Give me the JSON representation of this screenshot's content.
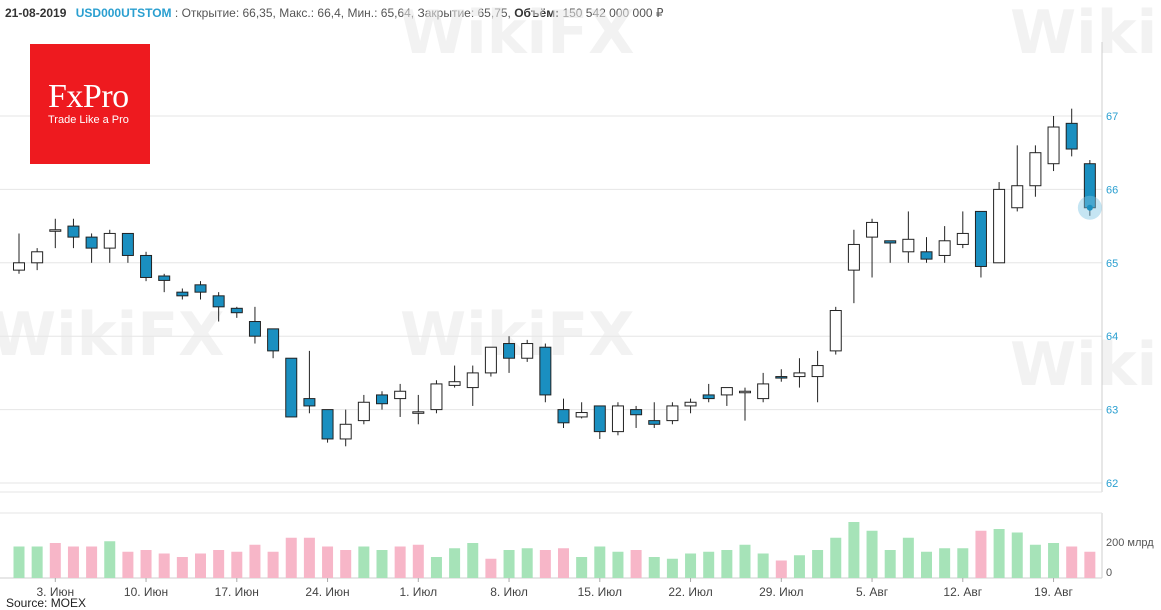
{
  "header": {
    "date": "21-08-2019",
    "ticker": "USD000UTSTOM",
    "sep": ":",
    "open": "Открытие: 66,35,",
    "high": "Макс.: 66,4,",
    "low": "Мин.: 65,64,",
    "close": "Закрытие: 65,75,",
    "volume_label": "Объём:",
    "volume_value": "150 542 000 000 ₽"
  },
  "logo": {
    "brand": "FxPro",
    "tagline": "Trade Like a Pro"
  },
  "watermark": "WikiFX",
  "source": "Source: MOEX",
  "colors": {
    "up_fill": "#ffffff",
    "down_fill": "#1a8fc0",
    "volume_up": "#a6e3b8",
    "volume_down": "#f7b6c8",
    "axis_text": "#2a9fd0",
    "brand_red": "#ee1a1f"
  },
  "chart_data": {
    "type": "candlestick",
    "y_axis": {
      "ticks": [
        62,
        63,
        64,
        65,
        66,
        67
      ],
      "range": [
        61.7,
        68.0
      ],
      "side": "right"
    },
    "volume_axis": {
      "ticks": [
        "0",
        "200 млрд"
      ]
    },
    "x_labels": [
      "3. Июн",
      "10. Июн",
      "17. Июн",
      "24. Июн",
      "1. Июл",
      "8. Июл",
      "15. Июл",
      "22. Июл",
      "29. Июл",
      "5. Авг",
      "12. Авг",
      "19. Авг"
    ],
    "x_label_index": [
      2,
      7,
      12,
      17,
      22,
      27,
      32,
      37,
      42,
      47,
      52,
      57
    ],
    "candles": [
      {
        "o": 64.9,
        "h": 65.4,
        "l": 64.85,
        "c": 65.0
      },
      {
        "o": 65.0,
        "h": 65.2,
        "l": 64.9,
        "c": 65.15
      },
      {
        "o": 65.45,
        "h": 65.6,
        "l": 65.2,
        "c": 65.45
      },
      {
        "o": 65.5,
        "h": 65.6,
        "l": 65.2,
        "c": 65.35
      },
      {
        "o": 65.35,
        "h": 65.4,
        "l": 65.0,
        "c": 65.2
      },
      {
        "o": 65.2,
        "h": 65.45,
        "l": 65.0,
        "c": 65.4
      },
      {
        "o": 65.4,
        "h": 65.4,
        "l": 65.0,
        "c": 65.1
      },
      {
        "o": 65.1,
        "h": 65.15,
        "l": 64.75,
        "c": 64.8
      },
      {
        "o": 64.82,
        "h": 64.85,
        "l": 64.6,
        "c": 64.76
      },
      {
        "o": 64.6,
        "h": 64.65,
        "l": 64.5,
        "c": 64.55
      },
      {
        "o": 64.7,
        "h": 64.75,
        "l": 64.5,
        "c": 64.6
      },
      {
        "o": 64.55,
        "h": 64.6,
        "l": 64.2,
        "c": 64.4
      },
      {
        "o": 64.38,
        "h": 64.4,
        "l": 64.25,
        "c": 64.32
      },
      {
        "o": 64.2,
        "h": 64.4,
        "l": 63.9,
        "c": 64.0
      },
      {
        "o": 64.1,
        "h": 64.1,
        "l": 63.7,
        "c": 63.8
      },
      {
        "o": 63.7,
        "h": 63.7,
        "l": 62.9,
        "c": 62.9
      },
      {
        "o": 63.15,
        "h": 63.8,
        "l": 62.95,
        "c": 63.05
      },
      {
        "o": 63.0,
        "h": 63.0,
        "l": 62.55,
        "c": 62.6
      },
      {
        "o": 62.6,
        "h": 63.0,
        "l": 62.5,
        "c": 62.8
      },
      {
        "o": 62.85,
        "h": 63.2,
        "l": 62.8,
        "c": 63.1
      },
      {
        "o": 63.2,
        "h": 63.25,
        "l": 63.0,
        "c": 63.08
      },
      {
        "o": 63.15,
        "h": 63.35,
        "l": 62.9,
        "c": 63.25
      },
      {
        "o": 62.95,
        "h": 63.2,
        "l": 62.8,
        "c": 62.97
      },
      {
        "o": 63.0,
        "h": 63.4,
        "l": 62.95,
        "c": 63.35
      },
      {
        "o": 63.33,
        "h": 63.6,
        "l": 63.3,
        "c": 63.38
      },
      {
        "o": 63.3,
        "h": 63.6,
        "l": 63.05,
        "c": 63.5
      },
      {
        "o": 63.5,
        "h": 63.85,
        "l": 63.45,
        "c": 63.85
      },
      {
        "o": 63.9,
        "h": 64.0,
        "l": 63.5,
        "c": 63.7
      },
      {
        "o": 63.7,
        "h": 63.95,
        "l": 63.65,
        "c": 63.9
      },
      {
        "o": 63.85,
        "h": 63.9,
        "l": 63.1,
        "c": 63.2
      },
      {
        "o": 63.0,
        "h": 63.15,
        "l": 62.75,
        "c": 62.82
      },
      {
        "o": 62.9,
        "h": 63.1,
        "l": 62.88,
        "c": 62.96
      },
      {
        "o": 63.05,
        "h": 63.05,
        "l": 62.6,
        "c": 62.7
      },
      {
        "o": 62.7,
        "h": 63.1,
        "l": 62.65,
        "c": 63.05
      },
      {
        "o": 63.0,
        "h": 63.05,
        "l": 62.75,
        "c": 62.93
      },
      {
        "o": 62.85,
        "h": 63.1,
        "l": 62.75,
        "c": 62.8
      },
      {
        "o": 62.85,
        "h": 63.1,
        "l": 62.8,
        "c": 63.05
      },
      {
        "o": 63.05,
        "h": 63.15,
        "l": 62.95,
        "c": 63.1
      },
      {
        "o": 63.2,
        "h": 63.35,
        "l": 63.1,
        "c": 63.15
      },
      {
        "o": 63.2,
        "h": 63.3,
        "l": 63.05,
        "c": 63.3
      },
      {
        "o": 63.25,
        "h": 63.3,
        "l": 62.85,
        "c": 63.25
      },
      {
        "o": 63.15,
        "h": 63.5,
        "l": 63.1,
        "c": 63.35
      },
      {
        "o": 63.45,
        "h": 63.55,
        "l": 63.38,
        "c": 63.43
      },
      {
        "o": 63.45,
        "h": 63.7,
        "l": 63.3,
        "c": 63.5
      },
      {
        "o": 63.45,
        "h": 63.8,
        "l": 63.1,
        "c": 63.6
      },
      {
        "o": 63.8,
        "h": 64.4,
        "l": 63.75,
        "c": 64.35
      },
      {
        "o": 64.9,
        "h": 65.45,
        "l": 64.45,
        "c": 65.25
      },
      {
        "o": 65.35,
        "h": 65.6,
        "l": 64.8,
        "c": 65.55
      },
      {
        "o": 65.3,
        "h": 65.3,
        "l": 65.0,
        "c": 65.27
      },
      {
        "o": 65.15,
        "h": 65.7,
        "l": 65.0,
        "c": 65.32
      },
      {
        "o": 65.15,
        "h": 65.35,
        "l": 65.0,
        "c": 65.05
      },
      {
        "o": 65.1,
        "h": 65.5,
        "l": 65.0,
        "c": 65.3
      },
      {
        "o": 65.25,
        "h": 65.7,
        "l": 65.2,
        "c": 65.4
      },
      {
        "o": 65.7,
        "h": 65.7,
        "l": 64.8,
        "c": 64.95
      },
      {
        "o": 65.0,
        "h": 66.1,
        "l": 65.0,
        "c": 66.0
      },
      {
        "o": 65.75,
        "h": 66.6,
        "l": 65.7,
        "c": 66.05
      },
      {
        "o": 66.05,
        "h": 66.6,
        "l": 65.9,
        "c": 66.5
      },
      {
        "o": 66.35,
        "h": 67.0,
        "l": 66.25,
        "c": 66.85
      },
      {
        "o": 66.9,
        "h": 67.1,
        "l": 66.45,
        "c": 66.55
      },
      {
        "o": 66.35,
        "h": 66.4,
        "l": 65.64,
        "c": 65.75
      }
    ],
    "volume": [
      {
        "v": 0.9,
        "d": "up"
      },
      {
        "v": 0.9,
        "d": "up"
      },
      {
        "v": 1.0,
        "d": "down"
      },
      {
        "v": 0.9,
        "d": "down"
      },
      {
        "v": 0.9,
        "d": "down"
      },
      {
        "v": 1.05,
        "d": "up"
      },
      {
        "v": 0.75,
        "d": "down"
      },
      {
        "v": 0.8,
        "d": "down"
      },
      {
        "v": 0.7,
        "d": "down"
      },
      {
        "v": 0.6,
        "d": "down"
      },
      {
        "v": 0.7,
        "d": "down"
      },
      {
        "v": 0.8,
        "d": "down"
      },
      {
        "v": 0.75,
        "d": "down"
      },
      {
        "v": 0.95,
        "d": "down"
      },
      {
        "v": 0.75,
        "d": "down"
      },
      {
        "v": 1.15,
        "d": "down"
      },
      {
        "v": 1.15,
        "d": "down"
      },
      {
        "v": 0.9,
        "d": "down"
      },
      {
        "v": 0.8,
        "d": "down"
      },
      {
        "v": 0.9,
        "d": "up"
      },
      {
        "v": 0.8,
        "d": "up"
      },
      {
        "v": 0.9,
        "d": "down"
      },
      {
        "v": 0.95,
        "d": "down"
      },
      {
        "v": 0.6,
        "d": "up"
      },
      {
        "v": 0.85,
        "d": "up"
      },
      {
        "v": 1.0,
        "d": "up"
      },
      {
        "v": 0.55,
        "d": "down"
      },
      {
        "v": 0.8,
        "d": "up"
      },
      {
        "v": 0.85,
        "d": "up"
      },
      {
        "v": 0.8,
        "d": "down"
      },
      {
        "v": 0.85,
        "d": "down"
      },
      {
        "v": 0.6,
        "d": "up"
      },
      {
        "v": 0.9,
        "d": "up"
      },
      {
        "v": 0.75,
        "d": "up"
      },
      {
        "v": 0.8,
        "d": "down"
      },
      {
        "v": 0.6,
        "d": "up"
      },
      {
        "v": 0.55,
        "d": "up"
      },
      {
        "v": 0.7,
        "d": "up"
      },
      {
        "v": 0.75,
        "d": "up"
      },
      {
        "v": 0.8,
        "d": "up"
      },
      {
        "v": 0.95,
        "d": "up"
      },
      {
        "v": 0.7,
        "d": "up"
      },
      {
        "v": 0.5,
        "d": "down"
      },
      {
        "v": 0.65,
        "d": "up"
      },
      {
        "v": 0.8,
        "d": "up"
      },
      {
        "v": 1.15,
        "d": "up"
      },
      {
        "v": 1.6,
        "d": "up"
      },
      {
        "v": 1.35,
        "d": "up"
      },
      {
        "v": 0.8,
        "d": "up"
      },
      {
        "v": 1.15,
        "d": "up"
      },
      {
        "v": 0.75,
        "d": "up"
      },
      {
        "v": 0.85,
        "d": "up"
      },
      {
        "v": 0.85,
        "d": "up"
      },
      {
        "v": 1.35,
        "d": "down"
      },
      {
        "v": 1.4,
        "d": "up"
      },
      {
        "v": 1.3,
        "d": "up"
      },
      {
        "v": 0.95,
        "d": "up"
      },
      {
        "v": 1.0,
        "d": "up"
      },
      {
        "v": 0.9,
        "d": "down"
      },
      {
        "v": 0.75,
        "d": "down"
      }
    ],
    "volume_max": 1.8
  }
}
